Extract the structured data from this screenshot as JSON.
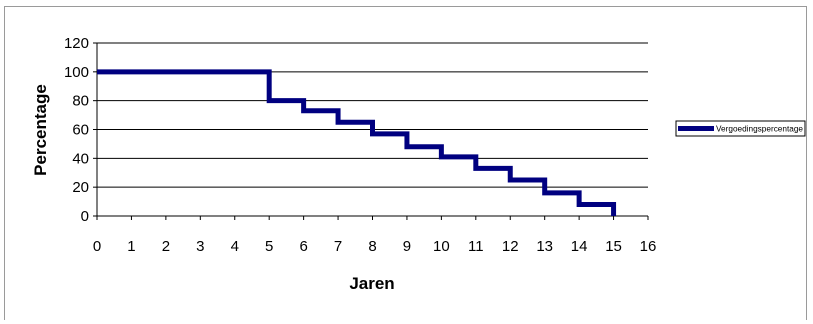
{
  "chart_data": {
    "type": "line",
    "step": true,
    "xlabel": "Jaren",
    "ylabel": "Percentage",
    "xlim": [
      0,
      16
    ],
    "ylim": [
      0,
      120
    ],
    "xticks": [
      0,
      1,
      2,
      3,
      4,
      5,
      6,
      7,
      8,
      9,
      10,
      11,
      12,
      13,
      14,
      15,
      16
    ],
    "yticks": [
      0,
      20,
      40,
      60,
      80,
      100,
      120
    ],
    "grid": "horizontal",
    "legend_position": "right",
    "series": [
      {
        "name": "Vergoedingspercentage",
        "color": "#000080",
        "x": [
          0,
          5,
          6,
          7,
          8,
          9,
          10,
          11,
          12,
          13,
          14,
          15
        ],
        "y": [
          100,
          80,
          73,
          65,
          57,
          48,
          41,
          33,
          25,
          16,
          8,
          0
        ]
      }
    ]
  }
}
